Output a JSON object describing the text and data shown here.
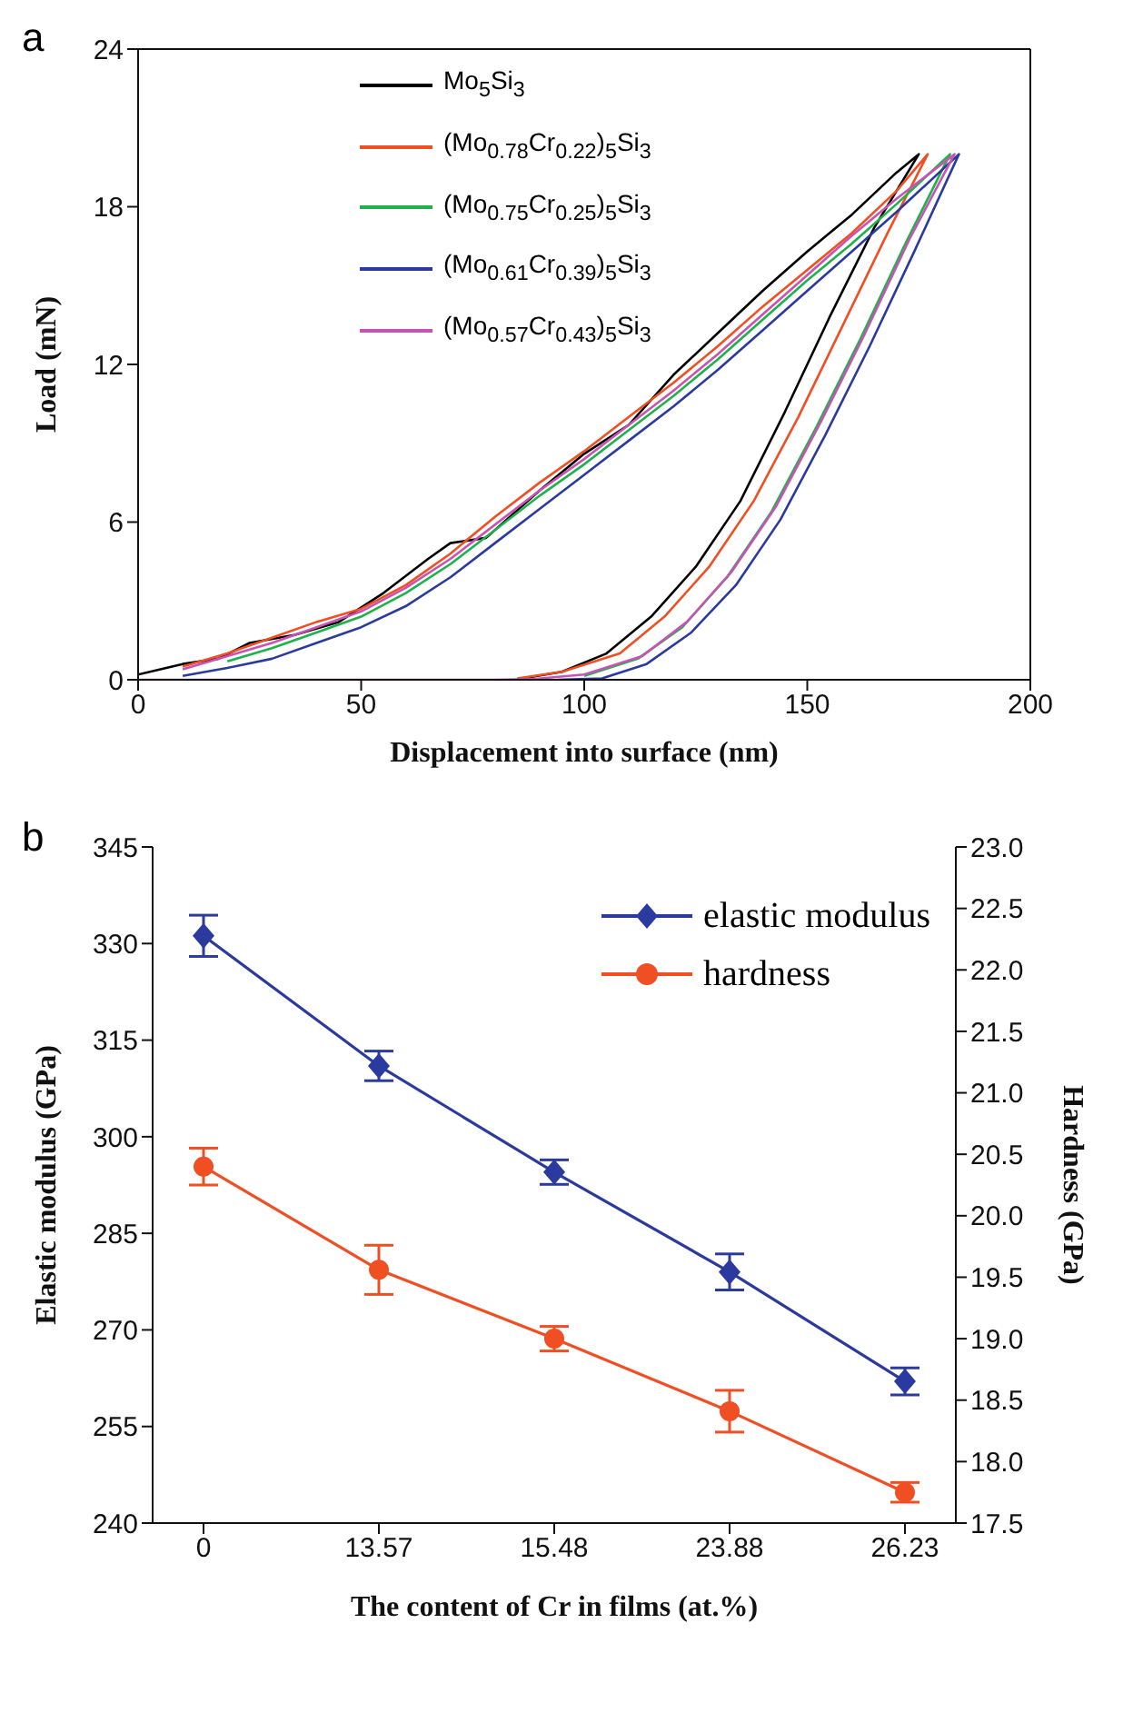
{
  "chart_data": [
    {
      "type": "line",
      "annotations": [
        "a"
      ],
      "xlabel": "Displacement into surface (nm)",
      "ylabel": "Load (mN)",
      "xlim": [
        0,
        200
      ],
      "xticks": [
        0,
        50,
        100,
        150,
        200
      ],
      "ylim": [
        0,
        24
      ],
      "yticks": [
        0,
        6,
        12,
        18,
        24
      ],
      "grid": false,
      "legend": "top left",
      "marker": "none",
      "line_style": "solid",
      "series": [
        {
          "name": "Mo$_{5}$Si$_{3}$",
          "color": "#000000",
          "x": [
            0,
            10,
            18,
            25,
            35,
            45,
            55,
            65,
            70,
            78,
            90,
            100,
            110,
            120,
            130,
            140,
            150,
            160,
            170,
            175,
            165,
            155,
            145,
            135,
            125,
            115,
            105,
            95,
            85
          ],
          "values": [
            0.2,
            0.6,
            0.8,
            1.4,
            1.7,
            2.2,
            3.3,
            4.6,
            5.2,
            5.4,
            7.2,
            8.6,
            9.7,
            11.6,
            13.2,
            14.8,
            16.3,
            17.7,
            19.3,
            20,
            17.2,
            13.8,
            10.2,
            6.8,
            4.3,
            2.4,
            1.0,
            0.3,
            0.02
          ]
        },
        {
          "name": "(Mo$_{0.78}$Cr$_{0.22}$)$_{5}$Si$_{3}$",
          "color": "#f04e23",
          "x": [
            10,
            20,
            30,
            40,
            50,
            60,
            70,
            80,
            90,
            100,
            110,
            120,
            130,
            140,
            150,
            160,
            170,
            177,
            168,
            158,
            148,
            138,
            128,
            118,
            108,
            95,
            85
          ],
          "values": [
            0.5,
            1.0,
            1.6,
            2.2,
            2.7,
            3.6,
            4.8,
            6.2,
            7.5,
            8.7,
            10.0,
            11.3,
            12.7,
            14.2,
            15.6,
            17.0,
            18.6,
            20,
            17.0,
            13.5,
            10.0,
            6.8,
            4.3,
            2.4,
            1.0,
            0.3,
            0.05
          ]
        },
        {
          "name": "(Mo$_{0.75}$Cr$_{0.25}$)$_{5}$Si$_{3}$",
          "color": "#1db34a",
          "x": [
            20,
            30,
            40,
            50,
            60,
            70,
            80,
            90,
            100,
            110,
            120,
            130,
            140,
            150,
            160,
            170,
            182,
            172,
            162,
            152,
            142,
            132,
            122,
            112,
            100
          ],
          "values": [
            0.7,
            1.2,
            1.8,
            2.4,
            3.3,
            4.4,
            5.7,
            7.0,
            8.2,
            9.5,
            10.8,
            12.2,
            13.7,
            15.2,
            16.6,
            18.1,
            20,
            16.6,
            13.0,
            9.6,
            6.4,
            3.9,
            2.0,
            0.8,
            0.15
          ]
        },
        {
          "name": "(Mo$_{0.61}$Cr$_{0.39}$)$_{5}$Si$_{3}$",
          "color": "#2b3a9e",
          "x": [
            10,
            20,
            30,
            40,
            50,
            60,
            70,
            80,
            90,
            100,
            110,
            120,
            130,
            140,
            150,
            160,
            170,
            184,
            174,
            164,
            154,
            144,
            134,
            124,
            114,
            104,
            94
          ],
          "values": [
            0.15,
            0.45,
            0.8,
            1.4,
            2.0,
            2.8,
            3.9,
            5.2,
            6.5,
            7.8,
            9.1,
            10.4,
            11.8,
            13.3,
            14.8,
            16.3,
            17.8,
            20,
            16.3,
            12.7,
            9.3,
            6.1,
            3.6,
            1.8,
            0.6,
            0.05,
            0
          ]
        },
        {
          "name": "(Mo$_{0.57}$Cr$_{0.43}$)$_{5}$Si$_{3}$",
          "color": "#c953b4",
          "x": [
            10,
            20,
            30,
            40,
            50,
            60,
            70,
            80,
            90,
            100,
            110,
            120,
            130,
            140,
            150,
            160,
            170,
            183,
            173,
            163,
            153,
            143,
            133,
            123,
            113,
            100,
            88,
            80,
            0
          ],
          "values": [
            0.4,
            0.9,
            1.4,
            2.0,
            2.6,
            3.5,
            4.6,
            5.9,
            7.2,
            8.4,
            9.7,
            11.0,
            12.4,
            13.9,
            15.4,
            16.9,
            18.3,
            20,
            16.8,
            13.2,
            9.8,
            6.6,
            4.1,
            2.2,
            0.9,
            0.2,
            0.02,
            0,
            0
          ]
        }
      ]
    },
    {
      "type": "line",
      "annotations": [
        "b"
      ],
      "xlabel": "The content of Cr in films (at.%)",
      "ylabel": "Elastic modulus (GPa)",
      "y2label": "Hardness (GPa)",
      "categories": [
        "0",
        "13.57",
        "15.48",
        "23.88",
        "26.23"
      ],
      "ylim": [
        240,
        345
      ],
      "yticks": [
        240,
        255,
        270,
        285,
        300,
        315,
        330,
        345
      ],
      "y2lim": [
        17.5,
        23
      ],
      "y2ticks": [
        17.5,
        {
          "value": 18,
          "label": "18.0"
        },
        18.5,
        {
          "value": 19,
          "label": "19.0"
        },
        19.5,
        {
          "value": 20,
          "label": "20.0"
        },
        20.5,
        {
          "value": 21,
          "label": "21.0"
        },
        21.5,
        {
          "value": 22,
          "label": "22.0"
        },
        22.5,
        {
          "value": 23,
          "label": "23.0"
        }
      ],
      "grid": false,
      "legend": "top right",
      "line_style": "solid",
      "series": [
        {
          "name": "elastic modulus",
          "color": "#2b3a9e",
          "marker": "diamond",
          "values": [
            331.2,
            311,
            294.5,
            279,
            262
          ],
          "errors": [
            3.2,
            2.3,
            1.9,
            2.8,
            2.1
          ]
        },
        {
          "name": "hardness",
          "color": "#f04e23",
          "marker": "circle",
          "axis": "y2",
          "values": [
            20.4,
            19.56,
            19.0,
            18.41,
            17.75
          ],
          "errors": [
            0.15,
            0.2,
            0.1,
            0.17,
            0.08
          ]
        }
      ]
    }
  ]
}
